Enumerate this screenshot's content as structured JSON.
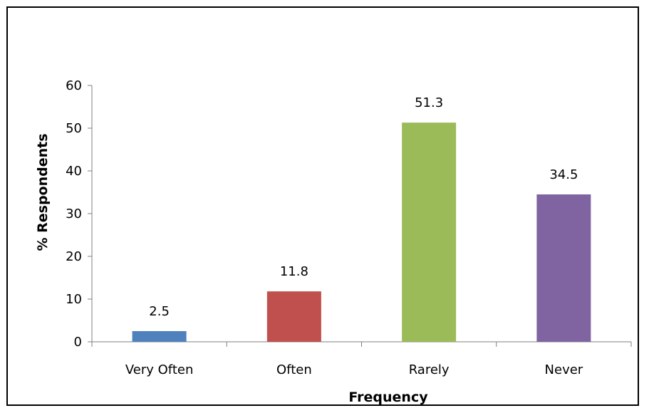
{
  "chart_data": {
    "type": "bar",
    "title": "",
    "xlabel": "Frequency",
    "ylabel": "% Respondents",
    "categories": [
      "Very Often",
      "Often",
      "Rarely",
      "Never"
    ],
    "values": [
      2.5,
      11.8,
      51.3,
      34.5
    ],
    "data_labels": [
      "2.5",
      "11.8",
      "51.3",
      "34.5"
    ],
    "colors": [
      "#4F81BD",
      "#C0504D",
      "#9BBB59",
      "#8064A2"
    ],
    "ylim": [
      0,
      60
    ],
    "yticks": [
      "0",
      "10",
      "20",
      "30",
      "40",
      "50",
      "60"
    ],
    "grid": false,
    "legend": "none"
  }
}
